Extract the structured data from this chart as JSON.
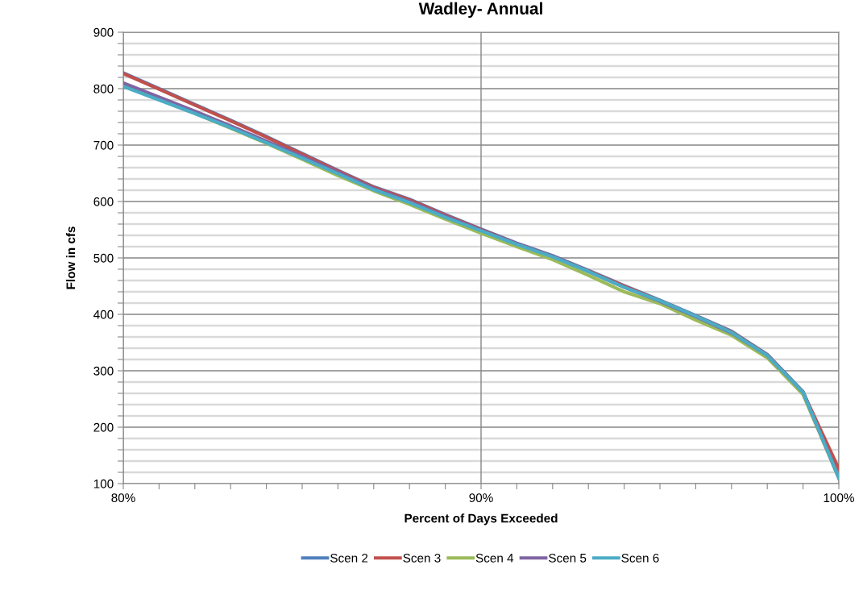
{
  "chart_data": {
    "type": "line",
    "title": "Wadley- Annual",
    "xlabel": "Percent of Days Exceeded",
    "ylabel": "Flow in cfs",
    "x": [
      80,
      81,
      82,
      83,
      84,
      85,
      86,
      87,
      88,
      89,
      90,
      91,
      92,
      93,
      94,
      95,
      96,
      97,
      98,
      99,
      100
    ],
    "series": [
      {
        "name": "Scen 2",
        "color": "#4f81bd",
        "values": [
          828,
          800,
          772,
          744,
          715,
          685,
          655,
          626,
          604,
          577,
          551,
          526,
          504,
          478,
          451,
          425,
          398,
          370,
          329,
          263,
          112
        ]
      },
      {
        "name": "Scen 3",
        "color": "#c0504d",
        "values": [
          827,
          799,
          771,
          743,
          714,
          684,
          654,
          625,
          603,
          576,
          550,
          525,
          503,
          477,
          450,
          424,
          397,
          369,
          328,
          262,
          126
        ]
      },
      {
        "name": "Scen 4",
        "color": "#9bbb59",
        "values": [
          806,
          781,
          756,
          730,
          703,
          675,
          646,
          619,
          595,
          569,
          544,
          520,
          497,
          469,
          440,
          419,
          390,
          363,
          323,
          258,
          110
        ]
      },
      {
        "name": "Scen 5",
        "color": "#8064a2",
        "values": [
          810,
          785,
          760,
          734,
          707,
          680,
          652,
          623,
          600,
          574,
          549,
          525,
          503,
          476,
          448,
          423,
          396,
          367,
          327,
          262,
          110
        ]
      },
      {
        "name": "Scen 6",
        "color": "#4bacc6",
        "values": [
          804,
          780,
          756,
          731,
          704,
          677,
          649,
          621,
          598,
          572,
          548,
          524,
          502,
          476,
          448,
          424,
          397,
          368,
          327,
          262,
          110
        ]
      }
    ],
    "xlim": [
      80,
      100
    ],
    "xticks": [
      {
        "value": 80,
        "label": "80%"
      },
      {
        "value": 81,
        "label": null
      },
      {
        "value": 82,
        "label": null
      },
      {
        "value": 83,
        "label": null
      },
      {
        "value": 84,
        "label": null
      },
      {
        "value": 85,
        "label": null
      },
      {
        "value": 86,
        "label": null
      },
      {
        "value": 87,
        "label": null
      },
      {
        "value": 88,
        "label": null
      },
      {
        "value": 89,
        "label": null
      },
      {
        "value": 90,
        "label": "90%"
      },
      {
        "value": 91,
        "label": null
      },
      {
        "value": 92,
        "label": null
      },
      {
        "value": 93,
        "label": null
      },
      {
        "value": 94,
        "label": null
      },
      {
        "value": 95,
        "label": null
      },
      {
        "value": 96,
        "label": null
      },
      {
        "value": 97,
        "label": null
      },
      {
        "value": 98,
        "label": null
      },
      {
        "value": 99,
        "label": null
      },
      {
        "value": 100,
        "label": "100%"
      }
    ],
    "ylim": [
      100,
      900
    ],
    "yticks": [
      100,
      {
        "value": 120,
        "label": null
      },
      {
        "value": 140,
        "label": null
      },
      {
        "value": 160,
        "label": null
      },
      {
        "value": 180,
        "label": null
      },
      200,
      {
        "value": 220,
        "label": null
      },
      {
        "value": 240,
        "label": null
      },
      {
        "value": 260,
        "label": null
      },
      {
        "value": 280,
        "label": null
      },
      300,
      {
        "value": 320,
        "label": null
      },
      {
        "value": 340,
        "label": null
      },
      {
        "value": 360,
        "label": null
      },
      {
        "value": 380,
        "label": null
      },
      400,
      {
        "value": 420,
        "label": null
      },
      {
        "value": 440,
        "label": null
      },
      {
        "value": 460,
        "label": null
      },
      {
        "value": 480,
        "label": null
      },
      500,
      {
        "value": 520,
        "label": null
      },
      {
        "value": 540,
        "label": null
      },
      {
        "value": 560,
        "label": null
      },
      {
        "value": 580,
        "label": null
      },
      600,
      {
        "value": 620,
        "label": null
      },
      {
        "value": 640,
        "label": null
      },
      {
        "value": 660,
        "label": null
      },
      {
        "value": 680,
        "label": null
      },
      700,
      {
        "value": 720,
        "label": null
      },
      {
        "value": 740,
        "label": null
      },
      {
        "value": 760,
        "label": null
      },
      {
        "value": 780,
        "label": null
      },
      800,
      {
        "value": 820,
        "label": null
      },
      {
        "value": 840,
        "label": null
      },
      {
        "value": 860,
        "label": null
      },
      {
        "value": 880,
        "label": null
      },
      900
    ],
    "grid": true,
    "legend": "bottom",
    "marker": "none",
    "line_style": "solid"
  }
}
